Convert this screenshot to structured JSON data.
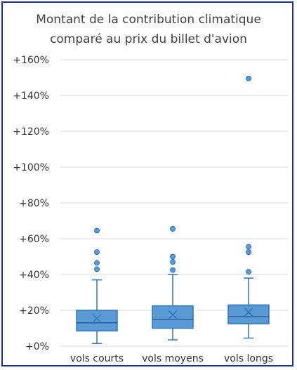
{
  "chart_data": {
    "type": "box",
    "title": "Montant de la contribution climatique",
    "subtitle": "comparé au prix du billet d'avion",
    "xlabel": "",
    "ylabel": "",
    "ylim": [
      0,
      160
    ],
    "yticks": [
      {
        "value": 0,
        "label": "+0%"
      },
      {
        "value": 20,
        "label": "+20%"
      },
      {
        "value": 40,
        "label": "+40%"
      },
      {
        "value": 60,
        "label": "+60%"
      },
      {
        "value": 80,
        "label": "+80%"
      },
      {
        "value": 100,
        "label": "+100%"
      },
      {
        "value": 120,
        "label": "+120%"
      },
      {
        "value": 140,
        "label": "+140%"
      },
      {
        "value": 160,
        "label": "+160%"
      }
    ],
    "grid": true,
    "categories": [
      "vols courts",
      "vols moyens",
      "vols longs"
    ],
    "boxes": [
      {
        "category": "vols courts",
        "min": 1.5,
        "q1": 8.5,
        "median": 13,
        "q3": 20,
        "max": 37,
        "mean": 15.5,
        "outliers": [
          43,
          46.5,
          52.5,
          64.5
        ]
      },
      {
        "category": "vols moyens",
        "min": 3.5,
        "q1": 10,
        "median": 15,
        "q3": 22.5,
        "max": 40,
        "mean": 17.5,
        "outliers": [
          42.5,
          47,
          50,
          65.5
        ]
      },
      {
        "category": "vols longs",
        "min": 4.5,
        "q1": 12.5,
        "median": 16.5,
        "q3": 23,
        "max": 38,
        "mean": 19,
        "outliers": [
          41.5,
          52.5,
          55.5,
          149.5
        ]
      }
    ],
    "colors": {
      "box": "#5b9bd5",
      "box_edge": "#2e75b6",
      "grid": "#d9d9d9",
      "mean_marker": "#2e75b6"
    }
  }
}
